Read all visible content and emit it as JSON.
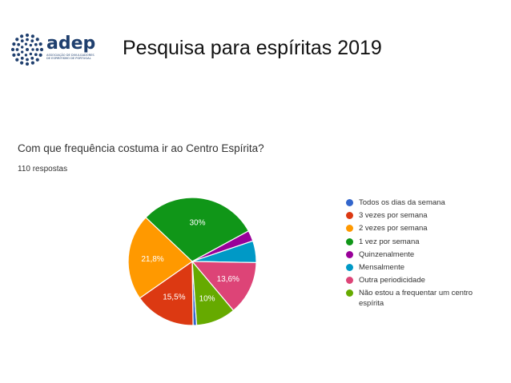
{
  "logo": {
    "text": "adep",
    "subtitle": "ASSOCIAÇÃO DE DIVULGADORES\nDE ESPIRITISMO DE PORTUGAL"
  },
  "slide": {
    "title": "Pesquisa para espíritas  2019"
  },
  "question": {
    "title": "Com que frequência costuma ir ao Centro Espírita?",
    "responses": "110 respostas"
  },
  "chart_data": {
    "type": "pie",
    "title": "Com que frequência costuma ir ao Centro Espírita?",
    "legend_position": "right",
    "slices": [
      {
        "label": "Todos os dias da semana",
        "value": 0.9,
        "display": "",
        "color": "#3366cc"
      },
      {
        "label": "3 vezes por semana",
        "value": 15.5,
        "display": "15,5%",
        "color": "#dc3912"
      },
      {
        "label": "2 vezes por semana",
        "value": 21.8,
        "display": "21,8%",
        "color": "#ff9900"
      },
      {
        "label": "1 vez por semana",
        "value": 30,
        "display": "30%",
        "color": "#109618"
      },
      {
        "label": "Quinzenalmente",
        "value": 2.7,
        "display": "",
        "color": "#990099"
      },
      {
        "label": "Mensalmente",
        "value": 5.5,
        "display": "",
        "color": "#0099c6"
      },
      {
        "label": "Outra periodicidade",
        "value": 13.6,
        "display": "13,6%",
        "color": "#dd4477"
      },
      {
        "label": "Não estou a frequentar um centro espírita",
        "value": 10,
        "display": "10%",
        "color": "#66aa00"
      }
    ]
  }
}
